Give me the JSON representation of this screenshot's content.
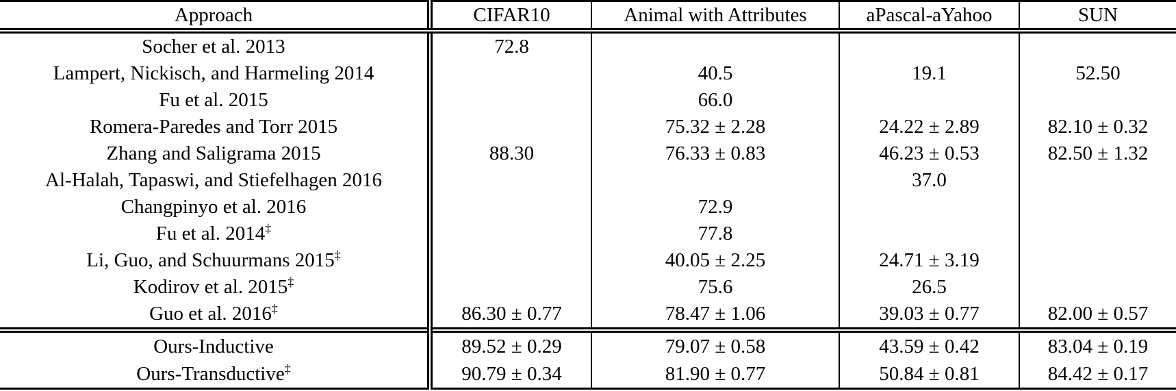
{
  "table": {
    "dagger_symbol": "‡",
    "columns": [
      "Approach",
      "CIFAR10",
      "Animal with Attributes",
      "aPascal-aYahoo",
      "SUN"
    ],
    "rows": [
      {
        "approach": "Socher et al. 2013",
        "dagger": false,
        "values": [
          "72.8",
          "",
          "",
          ""
        ]
      },
      {
        "approach": "Lampert, Nickisch, and Harmeling 2014",
        "dagger": false,
        "values": [
          "",
          "40.5",
          "19.1",
          "52.50"
        ]
      },
      {
        "approach": "Fu et al. 2015",
        "dagger": false,
        "values": [
          "",
          "66.0",
          "",
          ""
        ]
      },
      {
        "approach": "Romera-Paredes and Torr 2015",
        "dagger": false,
        "values": [
          "",
          "75.32 ± 2.28",
          "24.22 ± 2.89",
          "82.10 ± 0.32"
        ]
      },
      {
        "approach": "Zhang and Saligrama 2015",
        "dagger": false,
        "values": [
          "88.30",
          "76.33 ± 0.83",
          "46.23 ± 0.53",
          "82.50 ± 1.32"
        ]
      },
      {
        "approach": "Al-Halah, Tapaswi, and Stiefelhagen 2016",
        "dagger": false,
        "values": [
          "",
          "",
          "37.0",
          ""
        ]
      },
      {
        "approach": "Changpinyo et al. 2016",
        "dagger": false,
        "values": [
          "",
          "72.9",
          "",
          ""
        ]
      },
      {
        "approach": "Fu et al. 2014",
        "dagger": true,
        "values": [
          "",
          "77.8",
          "",
          ""
        ]
      },
      {
        "approach": "Li, Guo, and Schuurmans 2015",
        "dagger": true,
        "values": [
          "",
          "40.05 ± 2.25",
          "24.71 ± 3.19",
          ""
        ]
      },
      {
        "approach": "Kodirov et al. 2015",
        "dagger": true,
        "values": [
          "",
          "75.6",
          "26.5",
          ""
        ]
      },
      {
        "approach": "Guo et al. 2016",
        "dagger": true,
        "values": [
          "86.30 ± 0.77",
          "78.47 ± 1.06",
          "39.03 ± 0.77",
          "82.00 ± 0.57"
        ]
      }
    ],
    "ours_rows": [
      {
        "approach": "Ours-Inductive",
        "dagger": false,
        "values": [
          "89.52 ± 0.29",
          "79.07 ± 0.58",
          "43.59 ± 0.42",
          "83.04 ± 0.19"
        ]
      },
      {
        "approach": "Ours-Transductive",
        "dagger": true,
        "values": [
          "90.79 ± 0.34",
          "81.90 ± 0.77",
          "50.84 ± 0.81",
          "84.42 ± 0.17"
        ]
      }
    ]
  }
}
